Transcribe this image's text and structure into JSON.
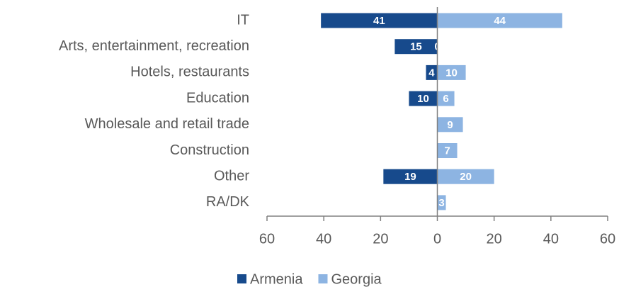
{
  "chart_data": {
    "type": "diverging-bar",
    "categories": [
      "IT",
      "Arts, entertainment, recreation",
      "Hotels, restaurants",
      "Education",
      "Wholesale and retail trade",
      "Construction",
      "Other",
      "RA/DK"
    ],
    "series": [
      {
        "name": "Armenia",
        "color": "#174a8c",
        "values": [
          -41,
          -15,
          -4,
          -10,
          0,
          0,
          -19,
          0
        ],
        "value_labels": [
          "41",
          "15",
          "4",
          "10",
          "0",
          "0",
          "19",
          "0"
        ]
      },
      {
        "name": "Georgia",
        "color": "#8db4e2",
        "values": [
          44,
          0,
          10,
          6,
          9,
          7,
          20,
          3
        ]
      }
    ],
    "xlim": [
      -60,
      60
    ],
    "xticks": [
      {
        "value": -60,
        "label": "60"
      },
      {
        "value": -40,
        "label": "40"
      },
      {
        "value": -20,
        "label": "20"
      },
      0,
      20,
      40,
      60
    ],
    "legend": "bottom"
  }
}
